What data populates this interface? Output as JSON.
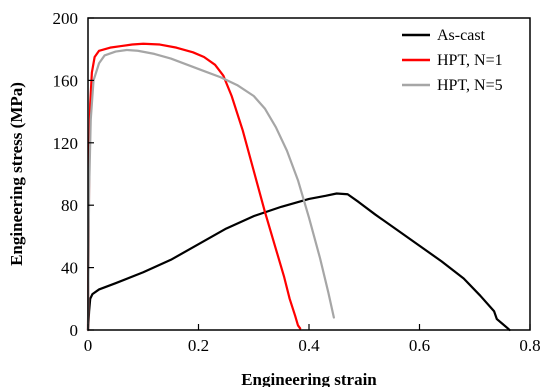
{
  "chart_data": {
    "type": "line",
    "title": "",
    "xlabel": "Engineering strain",
    "ylabel": "Engineering stress (MPa)",
    "xlim": [
      0,
      0.8
    ],
    "ylim": [
      0,
      200
    ],
    "xticks": [
      0,
      0.2,
      0.4,
      0.6,
      0.8
    ],
    "xtick_labels": [
      "0",
      "0.2",
      "0.4",
      "0.6",
      "0.8"
    ],
    "yticks": [
      0,
      40,
      80,
      120,
      160,
      200
    ],
    "ytick_labels": [
      "0",
      "40",
      "80",
      "120",
      "160",
      "200"
    ],
    "grid": false,
    "legend_position": "top-right",
    "series": [
      {
        "name": "As-cast",
        "color": "#000000",
        "points": [
          [
            0.0,
            0
          ],
          [
            0.002,
            12
          ],
          [
            0.004,
            20
          ],
          [
            0.008,
            23
          ],
          [
            0.02,
            26
          ],
          [
            0.05,
            30
          ],
          [
            0.1,
            37
          ],
          [
            0.15,
            45
          ],
          [
            0.2,
            55
          ],
          [
            0.25,
            65
          ],
          [
            0.3,
            73
          ],
          [
            0.35,
            79
          ],
          [
            0.4,
            84
          ],
          [
            0.43,
            86
          ],
          [
            0.45,
            87.5
          ],
          [
            0.47,
            87
          ],
          [
            0.49,
            82
          ],
          [
            0.52,
            74
          ],
          [
            0.56,
            64
          ],
          [
            0.6,
            54
          ],
          [
            0.64,
            44
          ],
          [
            0.68,
            33
          ],
          [
            0.71,
            22
          ],
          [
            0.735,
            12
          ],
          [
            0.74,
            7
          ],
          [
            0.75,
            4
          ],
          [
            0.76,
            1
          ],
          [
            0.763,
            0
          ]
        ]
      },
      {
        "name": "HPT, N=1",
        "color": "#ff0000",
        "points": [
          [
            0.0,
            0
          ],
          [
            0.002,
            100
          ],
          [
            0.004,
            145
          ],
          [
            0.007,
            165
          ],
          [
            0.012,
            175
          ],
          [
            0.02,
            179
          ],
          [
            0.04,
            181
          ],
          [
            0.06,
            182
          ],
          [
            0.08,
            183
          ],
          [
            0.1,
            183.5
          ],
          [
            0.13,
            183
          ],
          [
            0.16,
            181
          ],
          [
            0.19,
            178
          ],
          [
            0.21,
            175
          ],
          [
            0.23,
            170
          ],
          [
            0.245,
            163
          ],
          [
            0.26,
            150
          ],
          [
            0.28,
            128
          ],
          [
            0.3,
            102
          ],
          [
            0.32,
            76
          ],
          [
            0.34,
            52
          ],
          [
            0.355,
            34
          ],
          [
            0.365,
            20
          ],
          [
            0.375,
            9
          ],
          [
            0.38,
            3
          ],
          [
            0.384,
            1
          ]
        ]
      },
      {
        "name": "HPT, N=5",
        "color": "#a6a6a6",
        "points": [
          [
            0.0,
            0
          ],
          [
            0.002,
            90
          ],
          [
            0.005,
            135
          ],
          [
            0.01,
            160
          ],
          [
            0.02,
            171
          ],
          [
            0.03,
            176
          ],
          [
            0.05,
            178.5
          ],
          [
            0.07,
            179.5
          ],
          [
            0.09,
            179
          ],
          [
            0.12,
            177
          ],
          [
            0.15,
            174
          ],
          [
            0.18,
            170
          ],
          [
            0.21,
            166
          ],
          [
            0.24,
            162
          ],
          [
            0.27,
            157
          ],
          [
            0.3,
            150
          ],
          [
            0.32,
            142
          ],
          [
            0.34,
            130
          ],
          [
            0.36,
            115
          ],
          [
            0.38,
            96
          ],
          [
            0.4,
            72
          ],
          [
            0.42,
            46
          ],
          [
            0.435,
            24
          ],
          [
            0.445,
            8
          ]
        ]
      }
    ]
  }
}
